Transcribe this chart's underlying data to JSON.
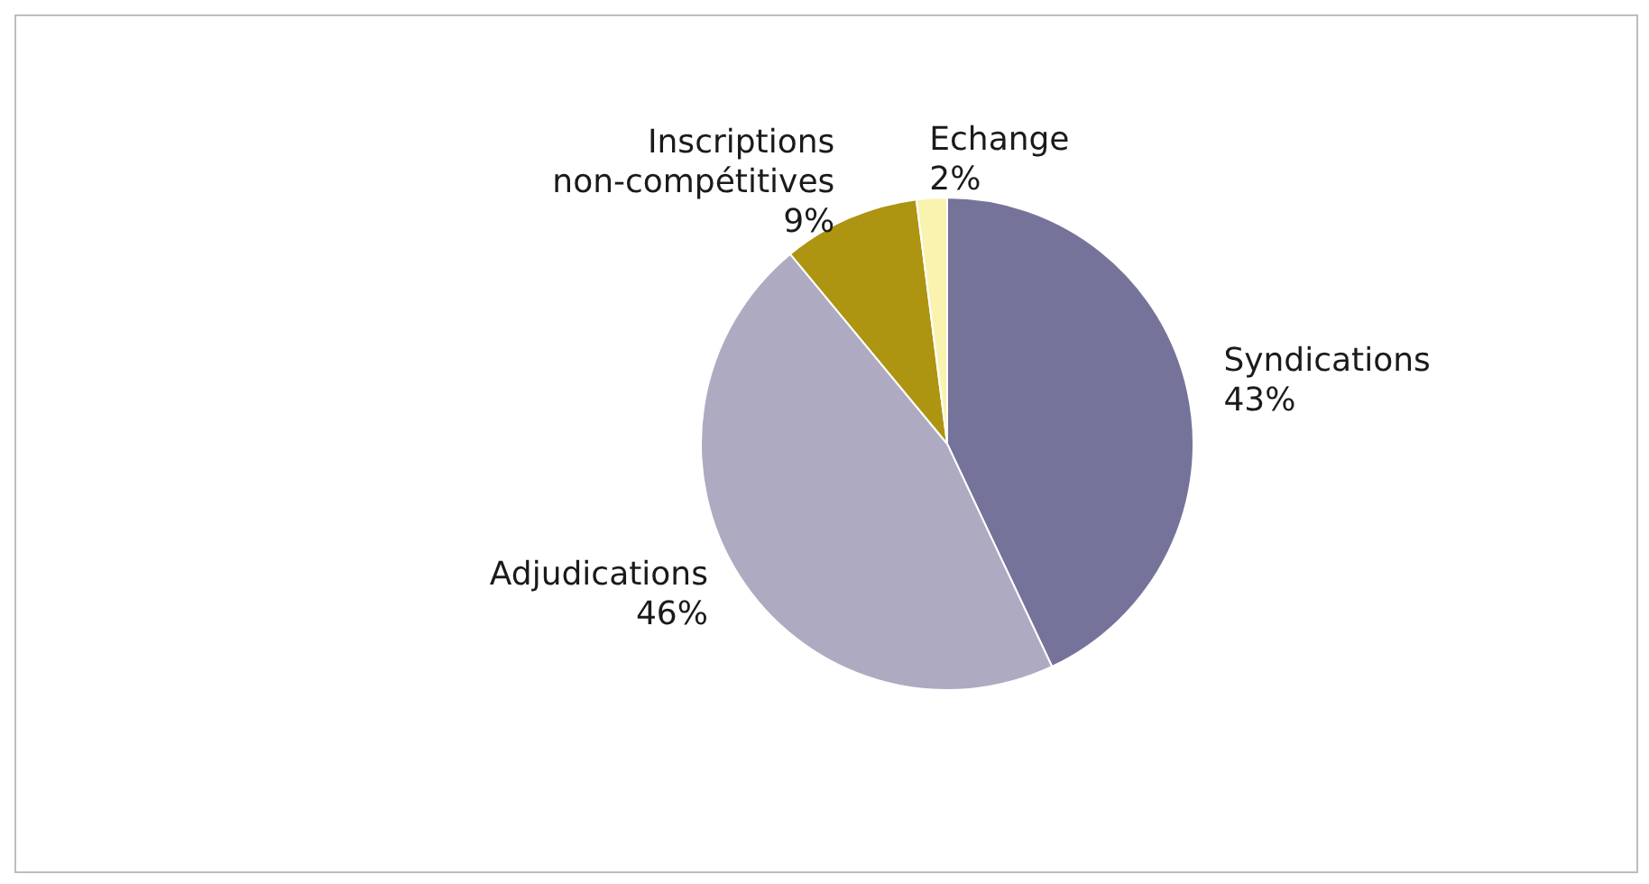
{
  "chart_data": {
    "type": "pie",
    "categories": [
      "Syndications",
      "Adjudications",
      "Inscriptions\nnon-compétitives",
      "Echange"
    ],
    "values": [
      43,
      46,
      9,
      2
    ],
    "colors": [
      "#75739a",
      "#aeaac2",
      "#ad9411",
      "#faf3b0"
    ],
    "value_labels": [
      "43%",
      "46%",
      "9%",
      "2%"
    ],
    "legend": false
  }
}
